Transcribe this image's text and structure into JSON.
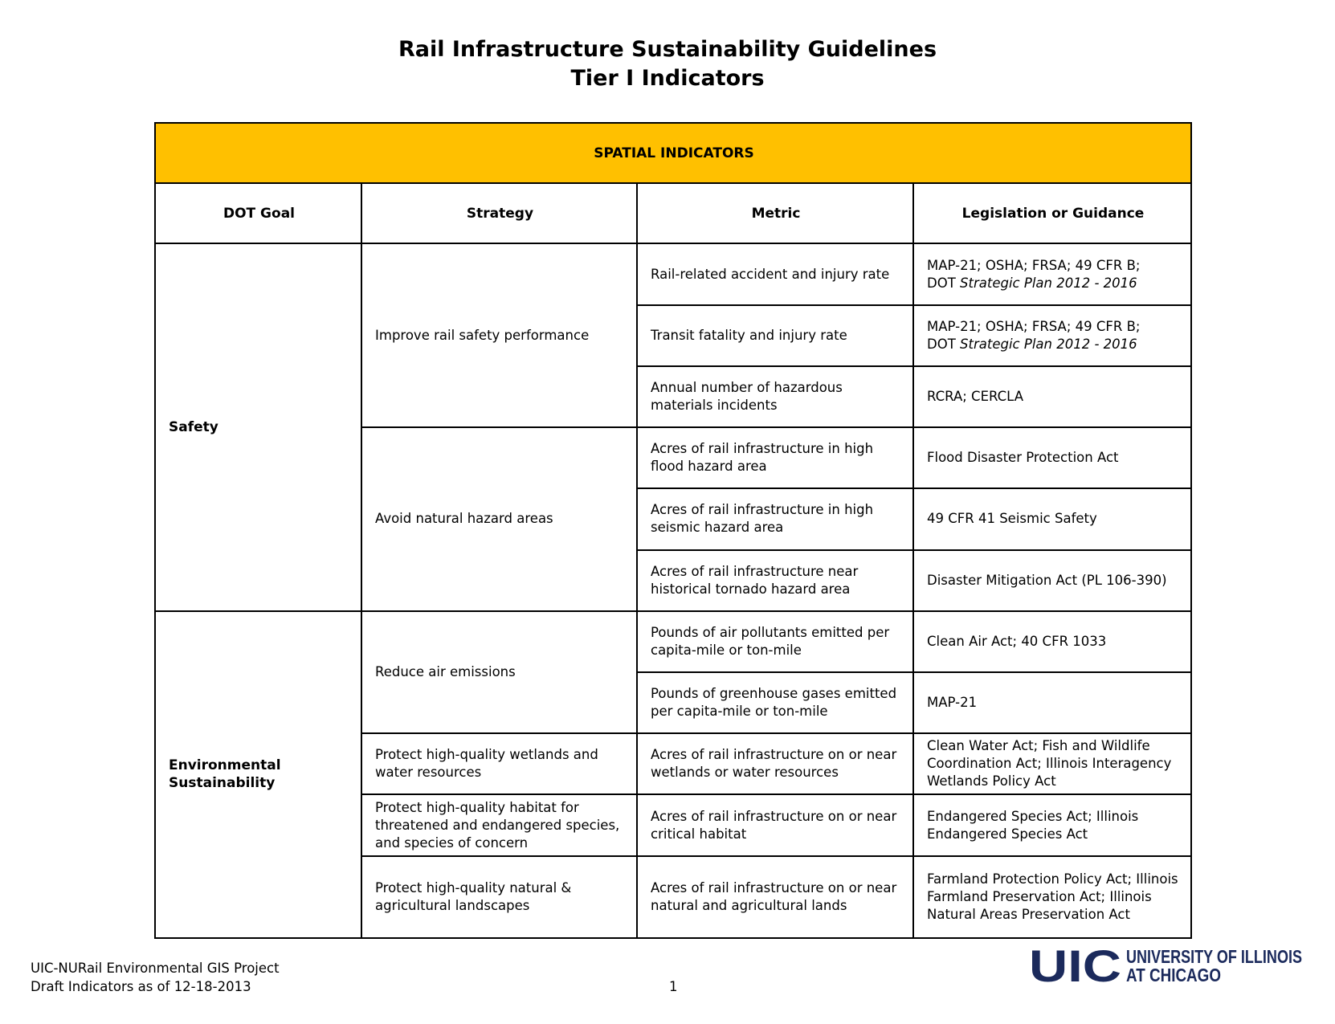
{
  "title": {
    "line1": "Rail Infrastructure Sustainability Guidelines",
    "line2": "Tier I Indicators"
  },
  "table": {
    "banner": "SPATIAL INDICATORS",
    "headers": [
      "DOT Goal",
      "Strategy",
      "Metric",
      "Legislation or Guidance"
    ],
    "goals": {
      "safety": "Safety",
      "environmental_line1": "Environmental",
      "environmental_line2": "Sustainability"
    },
    "strategies": {
      "s1": "Improve rail safety performance",
      "s2": "Avoid natural hazard areas",
      "s3": "Reduce air emissions",
      "s4": "Protect high-quality wetlands and water resources",
      "s5": "Protect high-quality habitat  for threatened and endangered species, and species of concern",
      "s6": "Protect high-quality natural & agricultural landscapes"
    },
    "metrics": {
      "m1": "Rail-related accident and injury rate",
      "m2": "Transit fatality and injury rate",
      "m3": "Annual number of hazardous materials incidents",
      "m4": "Acres of rail infrastructure in high flood hazard area",
      "m5": "Acres of rail infrastructure in high seismic hazard area",
      "m6": "Acres of rail infrastructure near historical tornado hazard area",
      "m7": "Pounds of air pollutants emitted per capita-mile or ton-mile",
      "m8": "Pounds of greenhouse gases emitted per capita-mile or ton-mile",
      "m9": "Acres of rail infrastructure on or near wetlands or water resources",
      "m10": "Acres of rail infrastructure on or near critical habitat",
      "m11": "Acres of rail infrastructure on or near natural and agricultural lands"
    },
    "legislation": {
      "l1_line1": "MAP-21; OSHA; FRSA; 49 CFR B;",
      "l1_prefix": "DOT ",
      "l1_italic": "Strategic Plan 2012 - 2016",
      "l2_line1": "MAP-21; OSHA; FRSA; 49 CFR B;",
      "l2_prefix": "DOT ",
      "l2_italic": "Strategic Plan 2012 - 2016",
      "l3": "RCRA; CERCLA",
      "l4": "Flood Disaster Protection Act",
      "l5": "49 CFR 41 Seismic Safety",
      "l6": "Disaster Mitigation Act (PL 106-390)",
      "l7": "Clean Air Act; 40 CFR 1033",
      "l8": "MAP-21",
      "l9": "Clean Water Act; Fish and Wildlife Coordination Act; Illinois Interagency Wetlands Policy Act",
      "l10": "Endangered Species Act; Illinois Endangered Species Act",
      "l11": "Farmland Protection Policy Act; Illinois Farmland Preservation Act; Illinois Natural Areas Preservation Act"
    }
  },
  "footer": {
    "line1": "UIC-NURail Environmental GIS Project",
    "line2": "Draft Indicators as of 12-18-2013",
    "page_number": "1"
  },
  "logo": {
    "mark": "UIC",
    "text_line1": "UNIVERSITY OF ILLINOIS",
    "text_line2": "AT CHICAGO",
    "color": "#1b2a5c"
  }
}
